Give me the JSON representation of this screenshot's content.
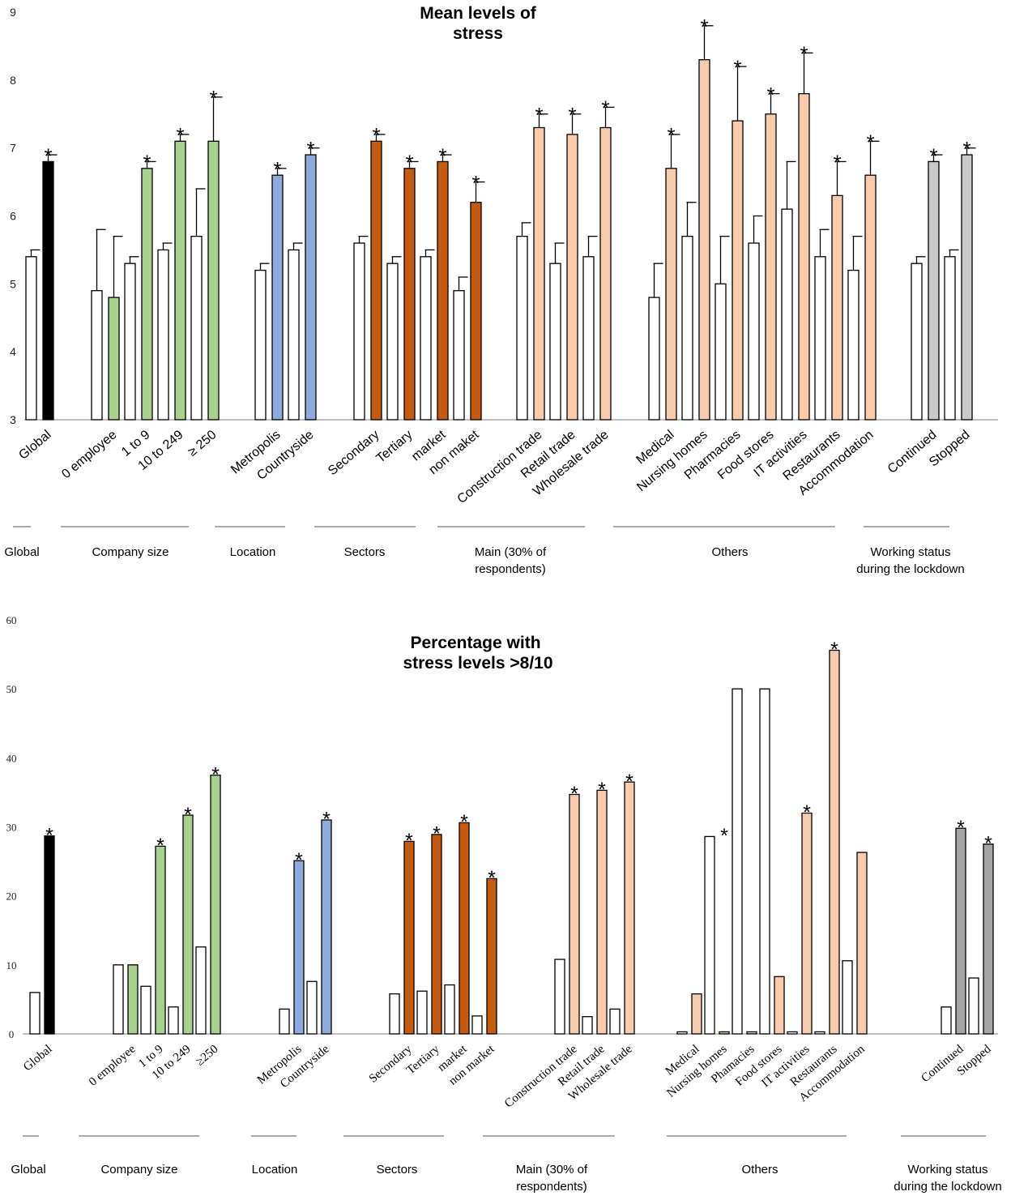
{
  "chart_data": [
    {
      "type": "bar",
      "title": "Mean levels of stress",
      "title_lines": [
        "Mean levels of",
        "stress"
      ],
      "ylim": [
        3,
        9
      ],
      "yticks": [
        "3",
        "4",
        "5",
        "6",
        "7",
        "8",
        "9"
      ],
      "significance_marker": "*",
      "colors": {
        "reference": "#ffffff",
        "global": "#000000",
        "company_size": "#a9d18e",
        "location": "#8faadc",
        "sectors": "#c55a11",
        "main": "#f8cbad",
        "others": "#f8cbad",
        "working_status": "#c9c9c9"
      },
      "labels": [
        "Global",
        "0 employee",
        "1 to 9",
        "10 to 249",
        "≥ 250",
        "Metropolis",
        "Countryside",
        "Secondary",
        "Tertiary",
        "market",
        "non maket",
        "Construction trade",
        "Retail trade",
        "Wholesale trade",
        "Medical",
        "Nursing homes",
        "Pharmacies",
        "Food stores",
        "IT activities",
        "Restaurants",
        "Accommodation",
        "Continued",
        "Stopped"
      ],
      "groups": [
        {
          "name": "Global",
          "lines": [
            "Global"
          ],
          "color_key": "global",
          "categories": [
            {
              "label": "Global",
              "reference": 5.4,
              "reference_err": 0.1,
              "value": 6.8,
              "err": 0.1,
              "sig": true
            }
          ]
        },
        {
          "name": "Company size",
          "lines": [
            "Company size"
          ],
          "color_key": "company_size",
          "categories": [
            {
              "label": "0 employee",
              "reference": 4.9,
              "reference_err": 0.9,
              "value": 4.8,
              "err": 0.9,
              "sig": false
            },
            {
              "label": "1 to 9",
              "reference": 5.3,
              "reference_err": 0.1,
              "value": 6.7,
              "err": 0.1,
              "sig": true
            },
            {
              "label": "10 to 249",
              "reference": 5.5,
              "reference_err": 0.1,
              "value": 7.1,
              "err": 0.1,
              "sig": true
            },
            {
              "label": "≥ 250",
              "reference": 5.7,
              "reference_err": 0.7,
              "value": 7.1,
              "err": 0.65,
              "sig": true
            }
          ]
        },
        {
          "name": "Location",
          "lines": [
            "Location"
          ],
          "color_key": "location",
          "categories": [
            {
              "label": "Metropolis",
              "reference": 5.2,
              "reference_err": 0.1,
              "value": 6.6,
              "err": 0.1,
              "sig": true
            },
            {
              "label": "Countryside",
              "reference": 5.5,
              "reference_err": 0.1,
              "value": 6.9,
              "err": 0.1,
              "sig": true
            }
          ]
        },
        {
          "name": "Sectors",
          "lines": [
            "Sectors"
          ],
          "color_key": "sectors",
          "categories": [
            {
              "label": "Secondary",
              "reference": 5.6,
              "reference_err": 0.1,
              "value": 7.1,
              "err": 0.1,
              "sig": true
            },
            {
              "label": "Tertiary",
              "reference": 5.3,
              "reference_err": 0.1,
              "value": 6.7,
              "err": 0.1,
              "sig": true
            },
            {
              "label": "market",
              "reference": 5.4,
              "reference_err": 0.1,
              "value": 6.8,
              "err": 0.1,
              "sig": true
            },
            {
              "label": "non maket",
              "reference": 4.9,
              "reference_err": 0.2,
              "value": 6.2,
              "err": 0.3,
              "sig": true
            }
          ]
        },
        {
          "name": "Main (30% of respondents)",
          "lines": [
            "Main (30% of",
            "respondents)"
          ],
          "color_key": "main",
          "categories": [
            {
              "label": "Construction trade",
              "reference": 5.7,
              "reference_err": 0.2,
              "value": 7.3,
              "err": 0.2,
              "sig": true
            },
            {
              "label": "Retail trade",
              "reference": 5.3,
              "reference_err": 0.3,
              "value": 7.2,
              "err": 0.3,
              "sig": true
            },
            {
              "label": "Wholesale trade",
              "reference": 5.4,
              "reference_err": 0.3,
              "value": 7.3,
              "err": 0.3,
              "sig": true
            }
          ]
        },
        {
          "name": "Others",
          "lines": [
            "Others"
          ],
          "color_key": "others",
          "categories": [
            {
              "label": "Medical",
              "reference": 4.8,
              "reference_err": 0.5,
              "value": 6.7,
              "err": 0.5,
              "sig": true
            },
            {
              "label": "Nursing homes",
              "reference": 5.7,
              "reference_err": 0.5,
              "value": 8.3,
              "err": 0.5,
              "sig": true
            },
            {
              "label": "Pharmacies",
              "reference": 5.0,
              "reference_err": 0.7,
              "value": 7.4,
              "err": 0.8,
              "sig": true
            },
            {
              "label": "Food stores",
              "reference": 5.6,
              "reference_err": 0.4,
              "value": 7.5,
              "err": 0.3,
              "sig": true
            },
            {
              "label": "IT activities",
              "reference": 6.1,
              "reference_err": 0.7,
              "value": 7.8,
              "err": 0.6,
              "sig": true
            },
            {
              "label": "Restaurants",
              "reference": 5.4,
              "reference_err": 0.4,
              "value": 6.3,
              "err": 0.5,
              "sig": true
            },
            {
              "label": "Accommodation",
              "reference": 5.2,
              "reference_err": 0.5,
              "value": 6.6,
              "err": 0.5,
              "sig": true
            }
          ]
        },
        {
          "name": "Working status during the lockdown",
          "lines": [
            "Working status",
            "during the lockdown"
          ],
          "color_key": "working_status",
          "categories": [
            {
              "label": "Continued",
              "reference": 5.3,
              "reference_err": 0.1,
              "value": 6.8,
              "err": 0.1,
              "sig": true
            },
            {
              "label": "Stopped",
              "reference": 5.4,
              "reference_err": 0.1,
              "value": 6.9,
              "err": 0.1,
              "sig": true
            }
          ]
        }
      ]
    },
    {
      "type": "bar",
      "title": "Percentage with stress levels >8/10",
      "title_lines": [
        "Percentage with",
        "stress levels >8/10"
      ],
      "ylim": [
        0,
        60
      ],
      "yticks": [
        "0",
        "10",
        "20",
        "30",
        "40",
        "50",
        "60"
      ],
      "significance_marker": "*",
      "colors": {
        "reference": "#ffffff",
        "global": "#000000",
        "company_size": "#a9d18e",
        "location": "#8faadc",
        "sectors": "#c55a11",
        "main": "#f8cbad",
        "others": "#f8cbad",
        "working_status": "#a5a5a5"
      },
      "labels": [
        "Global",
        "0 employee",
        "1 to 9",
        "10 to 249",
        "≥250",
        "Metropolis",
        "Countryside",
        "Secondary",
        "Tertiary",
        "market",
        "non market",
        "Construction trade",
        "Retail trade",
        "Wholesale trade",
        "Medical",
        "Nursing homes",
        "Phamacies",
        "Food stores",
        "IT activities",
        "Restaurants",
        "Accommodation",
        "Continued",
        "Stopped"
      ],
      "groups": [
        {
          "name": "Global",
          "lines": [
            "Global"
          ],
          "color_key": "global",
          "categories": [
            {
              "label": "Global",
              "reference": 6.0,
              "value": 28.7,
              "sig": true
            }
          ]
        },
        {
          "name": "Company size",
          "lines": [
            "Company size"
          ],
          "color_key": "company_size",
          "categories": [
            {
              "label": "0 employee",
              "reference": 10.0,
              "value": 10.0,
              "sig": false
            },
            {
              "label": "1 to 9",
              "reference": 6.9,
              "value": 27.2,
              "sig": true
            },
            {
              "label": "10 to 249",
              "reference": 3.9,
              "value": 31.7,
              "sig": true
            },
            {
              "label": "≥250",
              "reference": 12.6,
              "value": 37.5,
              "sig": true
            }
          ]
        },
        {
          "name": "Location",
          "lines": [
            "Location"
          ],
          "color_key": "location",
          "categories": [
            {
              "label": "Metropolis",
              "reference": 3.6,
              "value": 25.1,
              "sig": true
            },
            {
              "label": "Countryside",
              "reference": 7.6,
              "value": 31.0,
              "sig": true
            }
          ]
        },
        {
          "name": "Sectors",
          "lines": [
            "Sectors"
          ],
          "color_key": "sectors",
          "categories": [
            {
              "label": "Secondary",
              "reference": 5.8,
              "value": 27.9,
              "sig": true
            },
            {
              "label": "Tertiary",
              "reference": 6.2,
              "value": 28.9,
              "sig": true
            },
            {
              "label": "market",
              "reference": 7.1,
              "value": 30.6,
              "sig": true
            },
            {
              "label": "non market",
              "reference": 2.6,
              "value": 22.5,
              "sig": true
            }
          ]
        },
        {
          "name": "Main (30% of respondents)",
          "lines": [
            "Main (30% of",
            "respondents)"
          ],
          "color_key": "main",
          "categories": [
            {
              "label": "Construction trade",
              "reference": 10.8,
              "value": 34.7,
              "sig": true
            },
            {
              "label": "Retail trade",
              "reference": 2.5,
              "value": 35.3,
              "sig": true
            },
            {
              "label": "Wholesale trade",
              "reference": 3.6,
              "value": 36.5,
              "sig": true
            }
          ]
        },
        {
          "name": "Others",
          "lines": [
            "Others"
          ],
          "color_key": "others",
          "categories": [
            {
              "label": "Medical",
              "reference": 0.3,
              "value": 5.8,
              "sig": false
            },
            {
              "label": "Nursing homes",
              "reference": 28.6,
              "value": 0.3,
              "sig": true
            },
            {
              "label": "Phamacies",
              "reference": 50.0,
              "value": 0.3,
              "sig": false
            },
            {
              "label": "Food stores",
              "reference": 50.0,
              "value": 8.3,
              "sig": false
            },
            {
              "label": "IT activities",
              "reference": 0.3,
              "value": 32.0,
              "sig": true
            },
            {
              "label": "Restaurants",
              "reference": 0.3,
              "value": 55.6,
              "sig": true
            },
            {
              "label": "Accommodation",
              "reference": 10.6,
              "value": 26.3,
              "sig": false
            }
          ]
        },
        {
          "name": "Working status during the lockdown",
          "lines": [
            "Working status",
            "during the lockdown"
          ],
          "color_key": "working_status",
          "categories": [
            {
              "label": "Continued",
              "reference": 3.9,
              "value": 29.8,
              "sig": true
            },
            {
              "label": "Stopped",
              "reference": 8.1,
              "value": 27.5,
              "sig": true
            }
          ]
        }
      ]
    }
  ]
}
